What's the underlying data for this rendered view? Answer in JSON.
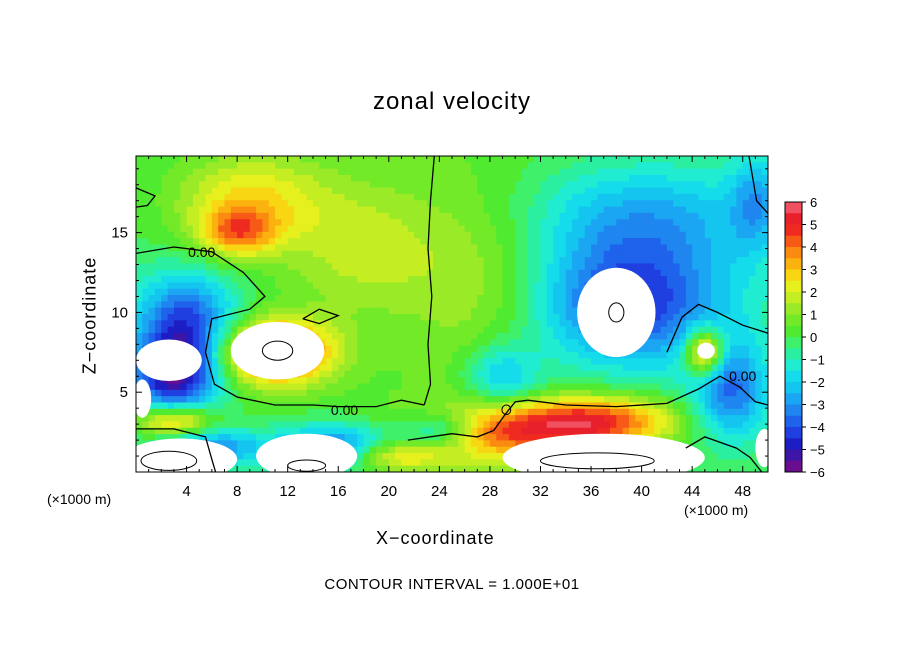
{
  "chart_data": {
    "type": "heatmap",
    "title": "zonal velocity",
    "xlabel": "X−coordinate",
    "ylabel": "Z−coordinate",
    "x_unit_left": "(×1000 m)",
    "x_unit_right": "(×1000 m)",
    "xlim": [
      0,
      50
    ],
    "ylim": [
      0,
      19.8
    ],
    "xticks": [
      4,
      8,
      12,
      16,
      20,
      24,
      28,
      32,
      36,
      40,
      44,
      48
    ],
    "yticks": [
      5,
      10,
      15
    ],
    "colorbar": {
      "ticks": [
        6,
        5,
        4,
        3,
        2,
        1,
        0,
        -1,
        -2,
        -3,
        -4,
        -5,
        -6
      ],
      "range": [
        -6,
        6
      ]
    },
    "contour_labels": [
      {
        "text": "0.00",
        "x": 5.2,
        "z": 13.8
      },
      {
        "text": "0.00",
        "x": 16.5,
        "z": 3.9
      },
      {
        "text": "0.00",
        "x": 48.0,
        "z": 6.0
      }
    ],
    "footer": "CONTOUR INTERVAL = 1.000E+01",
    "features": [
      {
        "value": 2.5,
        "x": 9,
        "z": 17,
        "sx": 6,
        "sz": 3
      },
      {
        "value": 3,
        "x": 8,
        "z": 15,
        "sx": 3,
        "sz": 1.5
      },
      {
        "value": 1.5,
        "x": 18,
        "z": 14,
        "sx": 6,
        "sz": 4
      },
      {
        "value": 1.2,
        "x": 28,
        "z": 12,
        "sx": 6,
        "sz": 6
      },
      {
        "value": -2.5,
        "x": 40,
        "z": 16,
        "sx": 10,
        "sz": 3.5
      },
      {
        "value": -4.5,
        "x": 39,
        "z": 10.5,
        "sx": 8,
        "sz": 4
      },
      {
        "value": -4,
        "x": 4,
        "z": 9.5,
        "sx": 4,
        "sz": 3
      },
      {
        "value": -5,
        "x": 3,
        "z": 6,
        "sx": 3.5,
        "sz": 2.5
      },
      {
        "value": 5.5,
        "x": 11,
        "z": 7.5,
        "sx": 4.5,
        "sz": 2
      },
      {
        "value": 4,
        "x": 30,
        "z": 2.5,
        "sx": 8,
        "sz": 1.8
      },
      {
        "value": 3.5,
        "x": 37,
        "z": 3.3,
        "sx": 6,
        "sz": 1.5
      },
      {
        "value": 5,
        "x": 45,
        "z": 7.5,
        "sx": 1.5,
        "sz": 1.5
      },
      {
        "value": -4,
        "x": 16,
        "z": 1.5,
        "sx": 5,
        "sz": 1.5
      },
      {
        "value": -3.5,
        "x": 47,
        "z": 5,
        "sx": 3,
        "sz": 3
      },
      {
        "value": -3,
        "x": 24,
        "z": 2.6,
        "sx": 3,
        "sz": 1.2
      },
      {
        "value": -2.5,
        "x": 29,
        "z": 6,
        "sx": 3,
        "sz": 2
      },
      {
        "value": -3,
        "x": 6,
        "z": 1.5,
        "sx": 4,
        "sz": 1.2
      },
      {
        "value": 4,
        "x": 3,
        "z": 3.2,
        "sx": 3,
        "sz": 1
      },
      {
        "value": 3,
        "x": 20,
        "z": 1,
        "sx": 4,
        "sz": 1
      },
      {
        "value": -2,
        "x": 49,
        "z": 17,
        "sx": 2,
        "sz": 3
      }
    ],
    "white_regions": [
      {
        "x": 11.2,
        "z": 7.6,
        "rx": 3.7,
        "rz": 1.8
      },
      {
        "x": 38,
        "z": 10,
        "rx": 3.1,
        "rz": 2.8
      },
      {
        "x": 2.6,
        "z": 7.0,
        "rx": 2.6,
        "rz": 1.3
      },
      {
        "x": 0.5,
        "z": 4.6,
        "rx": 0.7,
        "rz": 1.2
      },
      {
        "x": 3.5,
        "z": 0.8,
        "rx": 4.5,
        "rz": 1.3
      },
      {
        "x": 13.5,
        "z": 1.0,
        "rx": 4,
        "rz": 1.4
      },
      {
        "x": 37,
        "z": 0.9,
        "rx": 8,
        "rz": 1.5
      },
      {
        "x": 45.1,
        "z": 7.6,
        "rx": 0.7,
        "rz": 0.5
      },
      {
        "x": 49.7,
        "z": 1.5,
        "rx": 0.7,
        "rz": 1.2
      }
    ]
  }
}
